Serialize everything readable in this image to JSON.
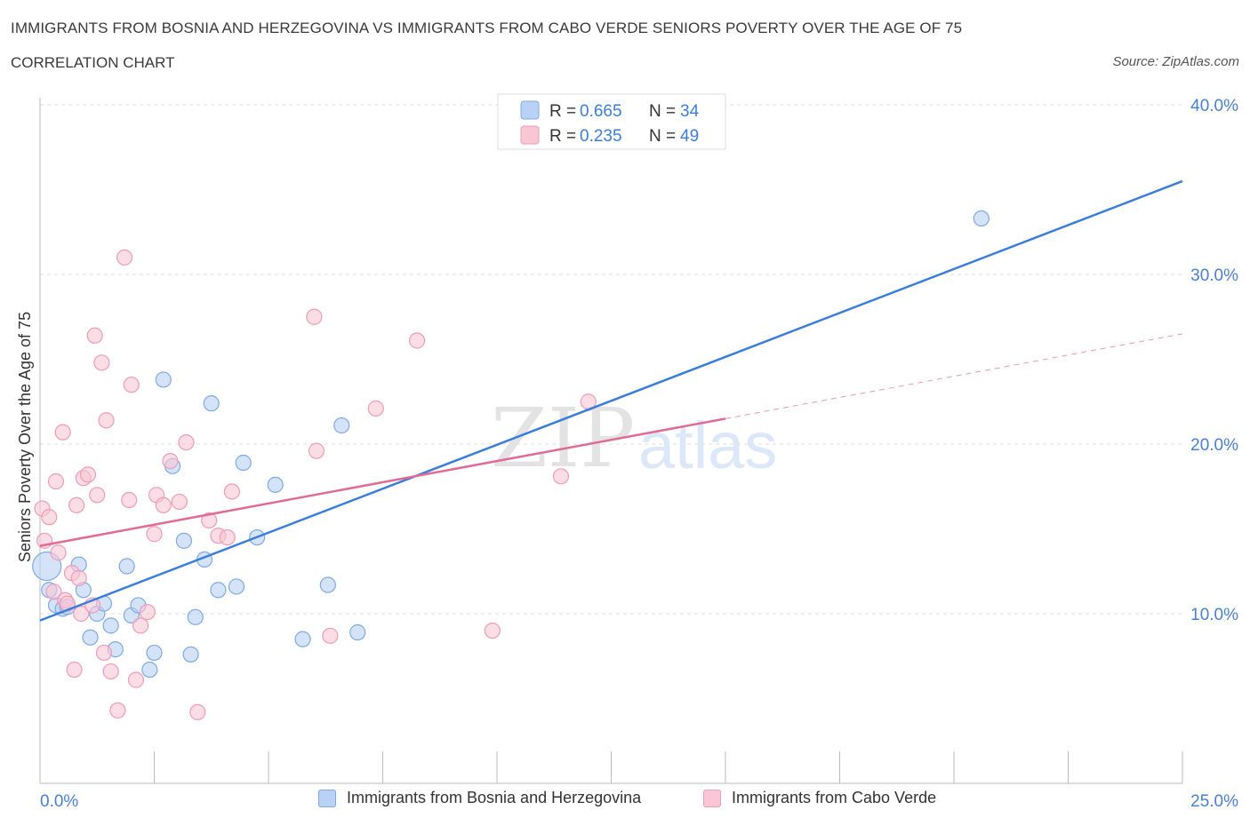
{
  "header": {
    "title": "IMMIGRANTS FROM BOSNIA AND HERZEGOVINA VS IMMIGRANTS FROM CABO VERDE SENIORS POVERTY OVER THE AGE OF 75",
    "subtitle": "CORRELATION CHART",
    "source": "Source: ZipAtlas.com"
  },
  "colors": {
    "blue_fill": "#b9d1f4",
    "blue_stroke": "#7eaae6",
    "blue_line": "#3b7dd8",
    "pink_fill": "#f9c6d6",
    "pink_stroke": "#ee9cb7",
    "pink_line": "#e06c96",
    "axis_text": "#4a7fcf",
    "grid": "#dddddd"
  },
  "watermark": {
    "zip": "ZIP",
    "atlas": "atlas"
  },
  "legend_top": {
    "rows": [
      {
        "r_label": "R = ",
        "r_value": "0.665",
        "n_label": "N = ",
        "n_value": "34"
      },
      {
        "r_label": "R = ",
        "r_value": "0.235",
        "n_label": "N = ",
        "n_value": "49"
      }
    ]
  },
  "legend_bottom": {
    "items": [
      "Immigrants from Bosnia and Herzegovina",
      "Immigrants from Cabo Verde"
    ]
  },
  "chart_data": {
    "type": "scatter",
    "title": "IMMIGRANTS FROM BOSNIA AND HERZEGOVINA VS IMMIGRANTS FROM CABO VERDE SENIORS POVERTY OVER THE AGE OF 75",
    "xlabel": "",
    "ylabel": "Seniors Poverty Over the Age of 75",
    "xlim": [
      0,
      25
    ],
    "ylim": [
      0,
      40
    ],
    "x_tick_labels": [
      "0.0%",
      "25.0%"
    ],
    "y_ticks": [
      10,
      20,
      30,
      40
    ],
    "y_tick_labels": [
      "10.0%",
      "20.0%",
      "30.0%",
      "40.0%"
    ],
    "series": [
      {
        "name": "Immigrants from Bosnia and Herzegovina",
        "color": "blue",
        "points": [
          [
            0.15,
            12.8
          ],
          [
            0.2,
            11.4
          ],
          [
            0.35,
            10.5
          ],
          [
            0.5,
            10.3
          ],
          [
            0.6,
            10.4
          ],
          [
            0.85,
            12.9
          ],
          [
            0.95,
            11.4
          ],
          [
            1.1,
            8.6
          ],
          [
            1.25,
            10.0
          ],
          [
            1.4,
            10.6
          ],
          [
            1.55,
            9.3
          ],
          [
            1.65,
            7.9
          ],
          [
            1.9,
            12.8
          ],
          [
            2.0,
            9.9
          ],
          [
            2.15,
            10.5
          ],
          [
            2.4,
            6.7
          ],
          [
            2.5,
            7.7
          ],
          [
            2.7,
            23.8
          ],
          [
            2.9,
            18.7
          ],
          [
            3.15,
            14.3
          ],
          [
            3.3,
            7.6
          ],
          [
            3.4,
            9.8
          ],
          [
            3.6,
            13.2
          ],
          [
            3.75,
            22.4
          ],
          [
            3.9,
            11.4
          ],
          [
            4.3,
            11.6
          ],
          [
            4.45,
            18.9
          ],
          [
            4.75,
            14.5
          ],
          [
            5.15,
            17.6
          ],
          [
            5.75,
            8.5
          ],
          [
            6.3,
            11.7
          ],
          [
            6.6,
            21.1
          ],
          [
            6.95,
            8.9
          ],
          [
            20.6,
            33.3
          ]
        ],
        "trend": {
          "x_start": 0,
          "y_start": 9.6,
          "x_end": 25,
          "y_end": 35.5
        }
      },
      {
        "name": "Immigrants from Cabo Verde",
        "color": "pink",
        "points": [
          [
            0.05,
            16.2
          ],
          [
            0.1,
            14.3
          ],
          [
            0.2,
            15.7
          ],
          [
            0.3,
            11.3
          ],
          [
            0.35,
            17.8
          ],
          [
            0.4,
            13.6
          ],
          [
            0.5,
            20.7
          ],
          [
            0.55,
            10.8
          ],
          [
            0.6,
            10.6
          ],
          [
            0.7,
            12.4
          ],
          [
            0.75,
            6.7
          ],
          [
            0.8,
            16.4
          ],
          [
            0.85,
            12.1
          ],
          [
            0.9,
            10.0
          ],
          [
            0.95,
            18.0
          ],
          [
            1.05,
            18.2
          ],
          [
            1.15,
            10.5
          ],
          [
            1.2,
            26.4
          ],
          [
            1.25,
            17.0
          ],
          [
            1.35,
            24.8
          ],
          [
            1.4,
            7.7
          ],
          [
            1.45,
            21.4
          ],
          [
            1.55,
            6.6
          ],
          [
            1.7,
            4.3
          ],
          [
            1.85,
            31.0
          ],
          [
            1.95,
            16.7
          ],
          [
            2.0,
            23.5
          ],
          [
            2.1,
            6.1
          ],
          [
            2.2,
            9.3
          ],
          [
            2.35,
            10.1
          ],
          [
            2.5,
            14.7
          ],
          [
            2.55,
            17.0
          ],
          [
            2.7,
            16.4
          ],
          [
            2.85,
            19.0
          ],
          [
            3.05,
            16.6
          ],
          [
            3.2,
            20.1
          ],
          [
            3.45,
            4.2
          ],
          [
            3.7,
            15.5
          ],
          [
            3.9,
            14.6
          ],
          [
            4.1,
            14.5
          ],
          [
            4.2,
            17.2
          ],
          [
            6.0,
            27.5
          ],
          [
            6.05,
            19.6
          ],
          [
            6.35,
            8.7
          ],
          [
            7.35,
            22.1
          ],
          [
            8.25,
            26.1
          ],
          [
            9.9,
            9.0
          ],
          [
            11.4,
            18.1
          ],
          [
            12.0,
            22.5
          ]
        ],
        "trend": {
          "x_start": 0,
          "y_start": 14.0,
          "x_end": 15.0,
          "y_end": 21.5
        },
        "trend_extension": {
          "x_start": 15.0,
          "y_start": 21.5,
          "x_end": 25,
          "y_end": 26.5
        }
      }
    ]
  }
}
